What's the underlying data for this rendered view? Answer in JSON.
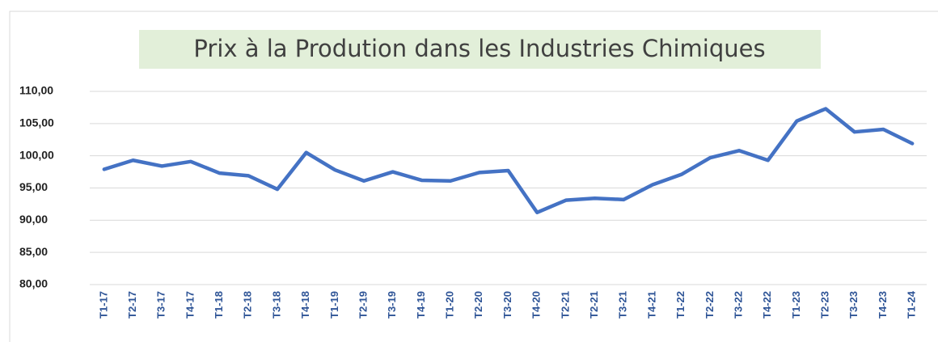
{
  "chart_data": {
    "type": "line",
    "title": "Prix à la Prodution dans les Industries Chimiques",
    "categories": [
      "T1-17",
      "T2-17",
      "T3-17",
      "T4-17",
      "T1-18",
      "T2-18",
      "T3-18",
      "T4-18",
      "T1-19",
      "T2-19",
      "T3-19",
      "T4-19",
      "T1-20",
      "T2-20",
      "T3-20",
      "T4-20",
      "T2-21",
      "T2-21",
      "T3-21",
      "T4-21",
      "T1-22",
      "T2-22",
      "T3-22",
      "T4-22",
      "T1-23",
      "T2-23",
      "T3-23",
      "T4-23",
      "T1-24"
    ],
    "values": [
      97.9,
      99.3,
      98.4,
      99.1,
      97.3,
      96.9,
      94.8,
      100.5,
      97.8,
      96.1,
      97.5,
      96.2,
      96.1,
      97.4,
      97.7,
      91.2,
      93.1,
      93.4,
      93.2,
      95.5,
      97.1,
      99.7,
      100.8,
      99.3,
      105.4,
      107.3,
      103.7,
      104.1,
      101.9
    ],
    "color": "#4472c4",
    "ylim": [
      80,
      110
    ],
    "yticks": [
      {
        "value": 80,
        "label": "80,00"
      },
      {
        "value": 85,
        "label": "85,00"
      },
      {
        "value": 90,
        "label": "90,00"
      },
      {
        "value": 95,
        "label": "95,00"
      },
      {
        "value": 100,
        "label": "100,00"
      },
      {
        "value": 105,
        "label": "105,00"
      },
      {
        "value": 110,
        "label": "110,00"
      }
    ],
    "grid": true
  }
}
